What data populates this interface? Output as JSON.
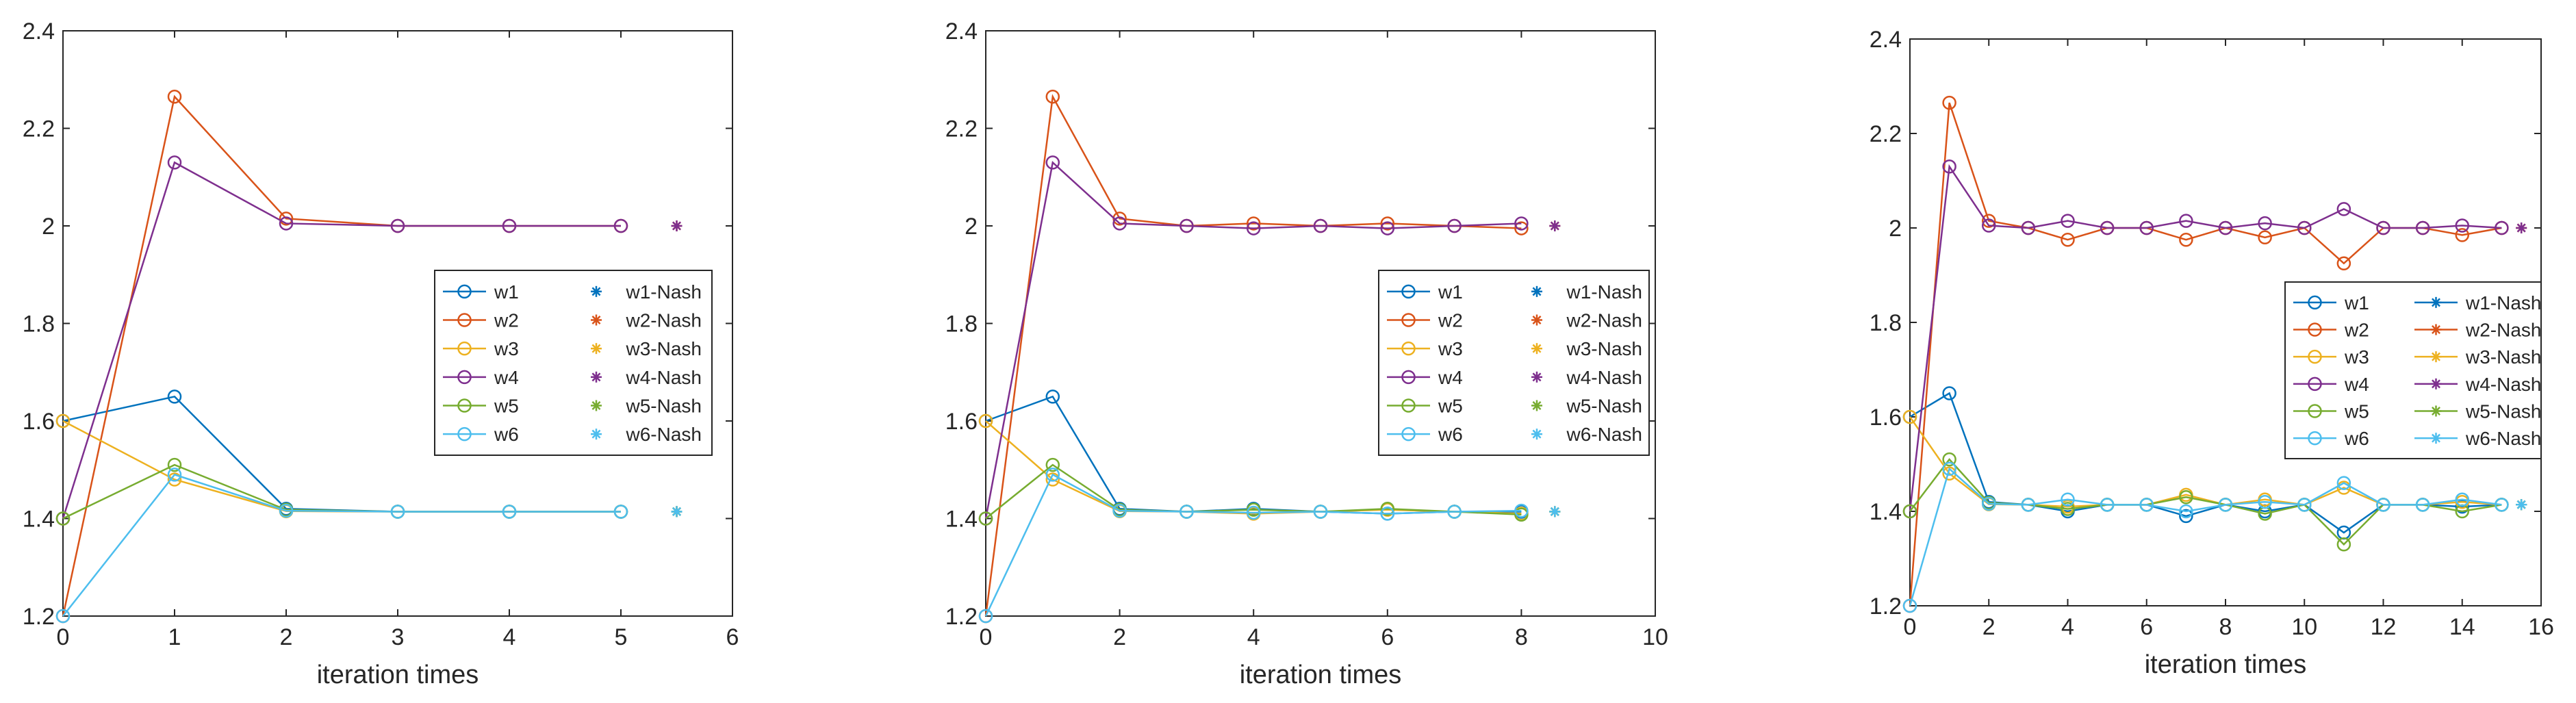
{
  "chart_data": [
    {
      "type": "line",
      "xlabel": "iteration times",
      "ylabel": "",
      "xlim": [
        0,
        6
      ],
      "ylim": [
        1.2,
        2.4
      ],
      "xticks": [
        "0",
        "1",
        "2",
        "3",
        "4",
        "5",
        "6"
      ],
      "yticks": [
        "1.2",
        "1.4",
        "1.6",
        "1.8",
        "2",
        "2.2",
        "2.4"
      ],
      "grid": false,
      "legend_placement": "center-right",
      "nash_x": 5.5,
      "nash_line": false,
      "x": [
        0,
        1,
        2,
        3,
        4,
        5
      ],
      "series": [
        {
          "name": "w1",
          "nash_name": "w1-Nash",
          "color": "#0072BD",
          "nash": 1.4142,
          "values": [
            1.6,
            1.65,
            1.42,
            1.414,
            1.414,
            1.414
          ]
        },
        {
          "name": "w2",
          "nash_name": "w2-Nash",
          "color": "#D95319",
          "nash": 2.0,
          "values": [
            1.2,
            2.265,
            2.015,
            2.0,
            2.0,
            2.0
          ]
        },
        {
          "name": "w3",
          "nash_name": "w3-Nash",
          "color": "#EDB120",
          "nash": 1.4142,
          "values": [
            1.6,
            1.48,
            1.415,
            1.414,
            1.414,
            1.414
          ]
        },
        {
          "name": "w4",
          "nash_name": "w4-Nash",
          "color": "#7E2F8E",
          "nash": 2.0,
          "values": [
            1.4,
            2.13,
            2.005,
            2.0,
            2.0,
            2.0
          ]
        },
        {
          "name": "w5",
          "nash_name": "w5-Nash",
          "color": "#77AC30",
          "nash": 1.4142,
          "values": [
            1.4,
            1.51,
            1.418,
            1.414,
            1.414,
            1.414
          ]
        },
        {
          "name": "w6",
          "nash_name": "w6-Nash",
          "color": "#4DBEEE",
          "nash": 1.4142,
          "values": [
            1.2,
            1.49,
            1.416,
            1.414,
            1.414,
            1.414
          ]
        }
      ]
    },
    {
      "type": "line",
      "xlabel": "iteration times",
      "ylabel": "",
      "xlim": [
        0,
        10
      ],
      "ylim": [
        1.2,
        2.4
      ],
      "xticks": [
        "0",
        "2",
        "4",
        "6",
        "8",
        "10"
      ],
      "yticks": [
        "1.2",
        "1.4",
        "1.6",
        "1.8",
        "2",
        "2.2",
        "2.4"
      ],
      "grid": false,
      "legend_placement": "center-right",
      "nash_x": 8.5,
      "nash_line": false,
      "x": [
        0,
        1,
        2,
        3,
        4,
        5,
        6,
        7,
        8
      ],
      "series": [
        {
          "name": "w1",
          "nash_name": "w1-Nash",
          "color": "#0072BD",
          "nash": 1.4142,
          "values": [
            1.6,
            1.65,
            1.42,
            1.414,
            1.42,
            1.414,
            1.41,
            1.414,
            1.414
          ]
        },
        {
          "name": "w2",
          "nash_name": "w2-Nash",
          "color": "#D95319",
          "nash": 2.0,
          "values": [
            1.2,
            2.265,
            2.015,
            2.0,
            2.005,
            2.0,
            2.005,
            2.0,
            1.995
          ]
        },
        {
          "name": "w3",
          "nash_name": "w3-Nash",
          "color": "#EDB120",
          "nash": 1.4142,
          "values": [
            1.6,
            1.48,
            1.415,
            1.414,
            1.41,
            1.414,
            1.418,
            1.414,
            1.41
          ]
        },
        {
          "name": "w4",
          "nash_name": "w4-Nash",
          "color": "#7E2F8E",
          "nash": 2.0,
          "values": [
            1.4,
            2.13,
            2.005,
            2.0,
            1.995,
            2.0,
            1.995,
            2.0,
            2.005
          ]
        },
        {
          "name": "w5",
          "nash_name": "w5-Nash",
          "color": "#77AC30",
          "nash": 1.4142,
          "values": [
            1.4,
            1.51,
            1.418,
            1.414,
            1.418,
            1.414,
            1.42,
            1.414,
            1.408
          ]
        },
        {
          "name": "w6",
          "nash_name": "w6-Nash",
          "color": "#4DBEEE",
          "nash": 1.4142,
          "values": [
            1.2,
            1.49,
            1.416,
            1.414,
            1.412,
            1.414,
            1.41,
            1.414,
            1.416
          ]
        }
      ]
    },
    {
      "type": "line",
      "xlabel": "iteration times",
      "ylabel": "",
      "xlim": [
        0,
        16
      ],
      "ylim": [
        1.2,
        2.4
      ],
      "xticks": [
        "0",
        "2",
        "4",
        "6",
        "8",
        "10",
        "12",
        "14",
        "16"
      ],
      "yticks": [
        "1.2",
        "1.4",
        "1.6",
        "1.8",
        "2",
        "2.2",
        "2.4"
      ],
      "grid": false,
      "legend_placement": "center-right",
      "nash_x": 15.5,
      "nash_line": true,
      "x": [
        0,
        1,
        2,
        3,
        4,
        5,
        6,
        7,
        8,
        9,
        10,
        11,
        12,
        13,
        14,
        15
      ],
      "series": [
        {
          "name": "w1",
          "nash_name": "w1-Nash",
          "color": "#0072BD",
          "nash": 1.4142,
          "values": [
            1.6,
            1.65,
            1.42,
            1.414,
            1.4,
            1.414,
            1.414,
            1.39,
            1.414,
            1.4,
            1.414,
            1.355,
            1.414,
            1.414,
            1.41,
            1.414
          ]
        },
        {
          "name": "w2",
          "nash_name": "w2-Nash",
          "color": "#D95319",
          "nash": 2.0,
          "values": [
            1.2,
            2.265,
            2.015,
            2.0,
            1.975,
            2.0,
            2.0,
            1.975,
            2.0,
            1.98,
            2.0,
            1.925,
            2.0,
            2.0,
            1.985,
            2.0
          ]
        },
        {
          "name": "w3",
          "nash_name": "w3-Nash",
          "color": "#EDB120",
          "nash": 1.4142,
          "values": [
            1.6,
            1.48,
            1.415,
            1.414,
            1.41,
            1.414,
            1.414,
            1.435,
            1.414,
            1.425,
            1.414,
            1.45,
            1.414,
            1.414,
            1.42,
            1.414
          ]
        },
        {
          "name": "w4",
          "nash_name": "w4-Nash",
          "color": "#7E2F8E",
          "nash": 2.0,
          "values": [
            1.4,
            2.13,
            2.005,
            2.0,
            2.015,
            2.0,
            2.0,
            2.015,
            2.0,
            2.01,
            2.0,
            2.04,
            2.0,
            2.0,
            2.005,
            2.0
          ]
        },
        {
          "name": "w5",
          "nash_name": "w5-Nash",
          "color": "#77AC30",
          "nash": 1.4142,
          "values": [
            1.4,
            1.51,
            1.418,
            1.414,
            1.405,
            1.414,
            1.414,
            1.43,
            1.414,
            1.395,
            1.414,
            1.33,
            1.414,
            1.414,
            1.4,
            1.414
          ]
        },
        {
          "name": "w6",
          "nash_name": "w6-Nash",
          "color": "#4DBEEE",
          "nash": 1.4142,
          "values": [
            1.2,
            1.49,
            1.416,
            1.414,
            1.425,
            1.414,
            1.414,
            1.4,
            1.414,
            1.42,
            1.414,
            1.46,
            1.414,
            1.414,
            1.425,
            1.414
          ]
        }
      ]
    }
  ]
}
